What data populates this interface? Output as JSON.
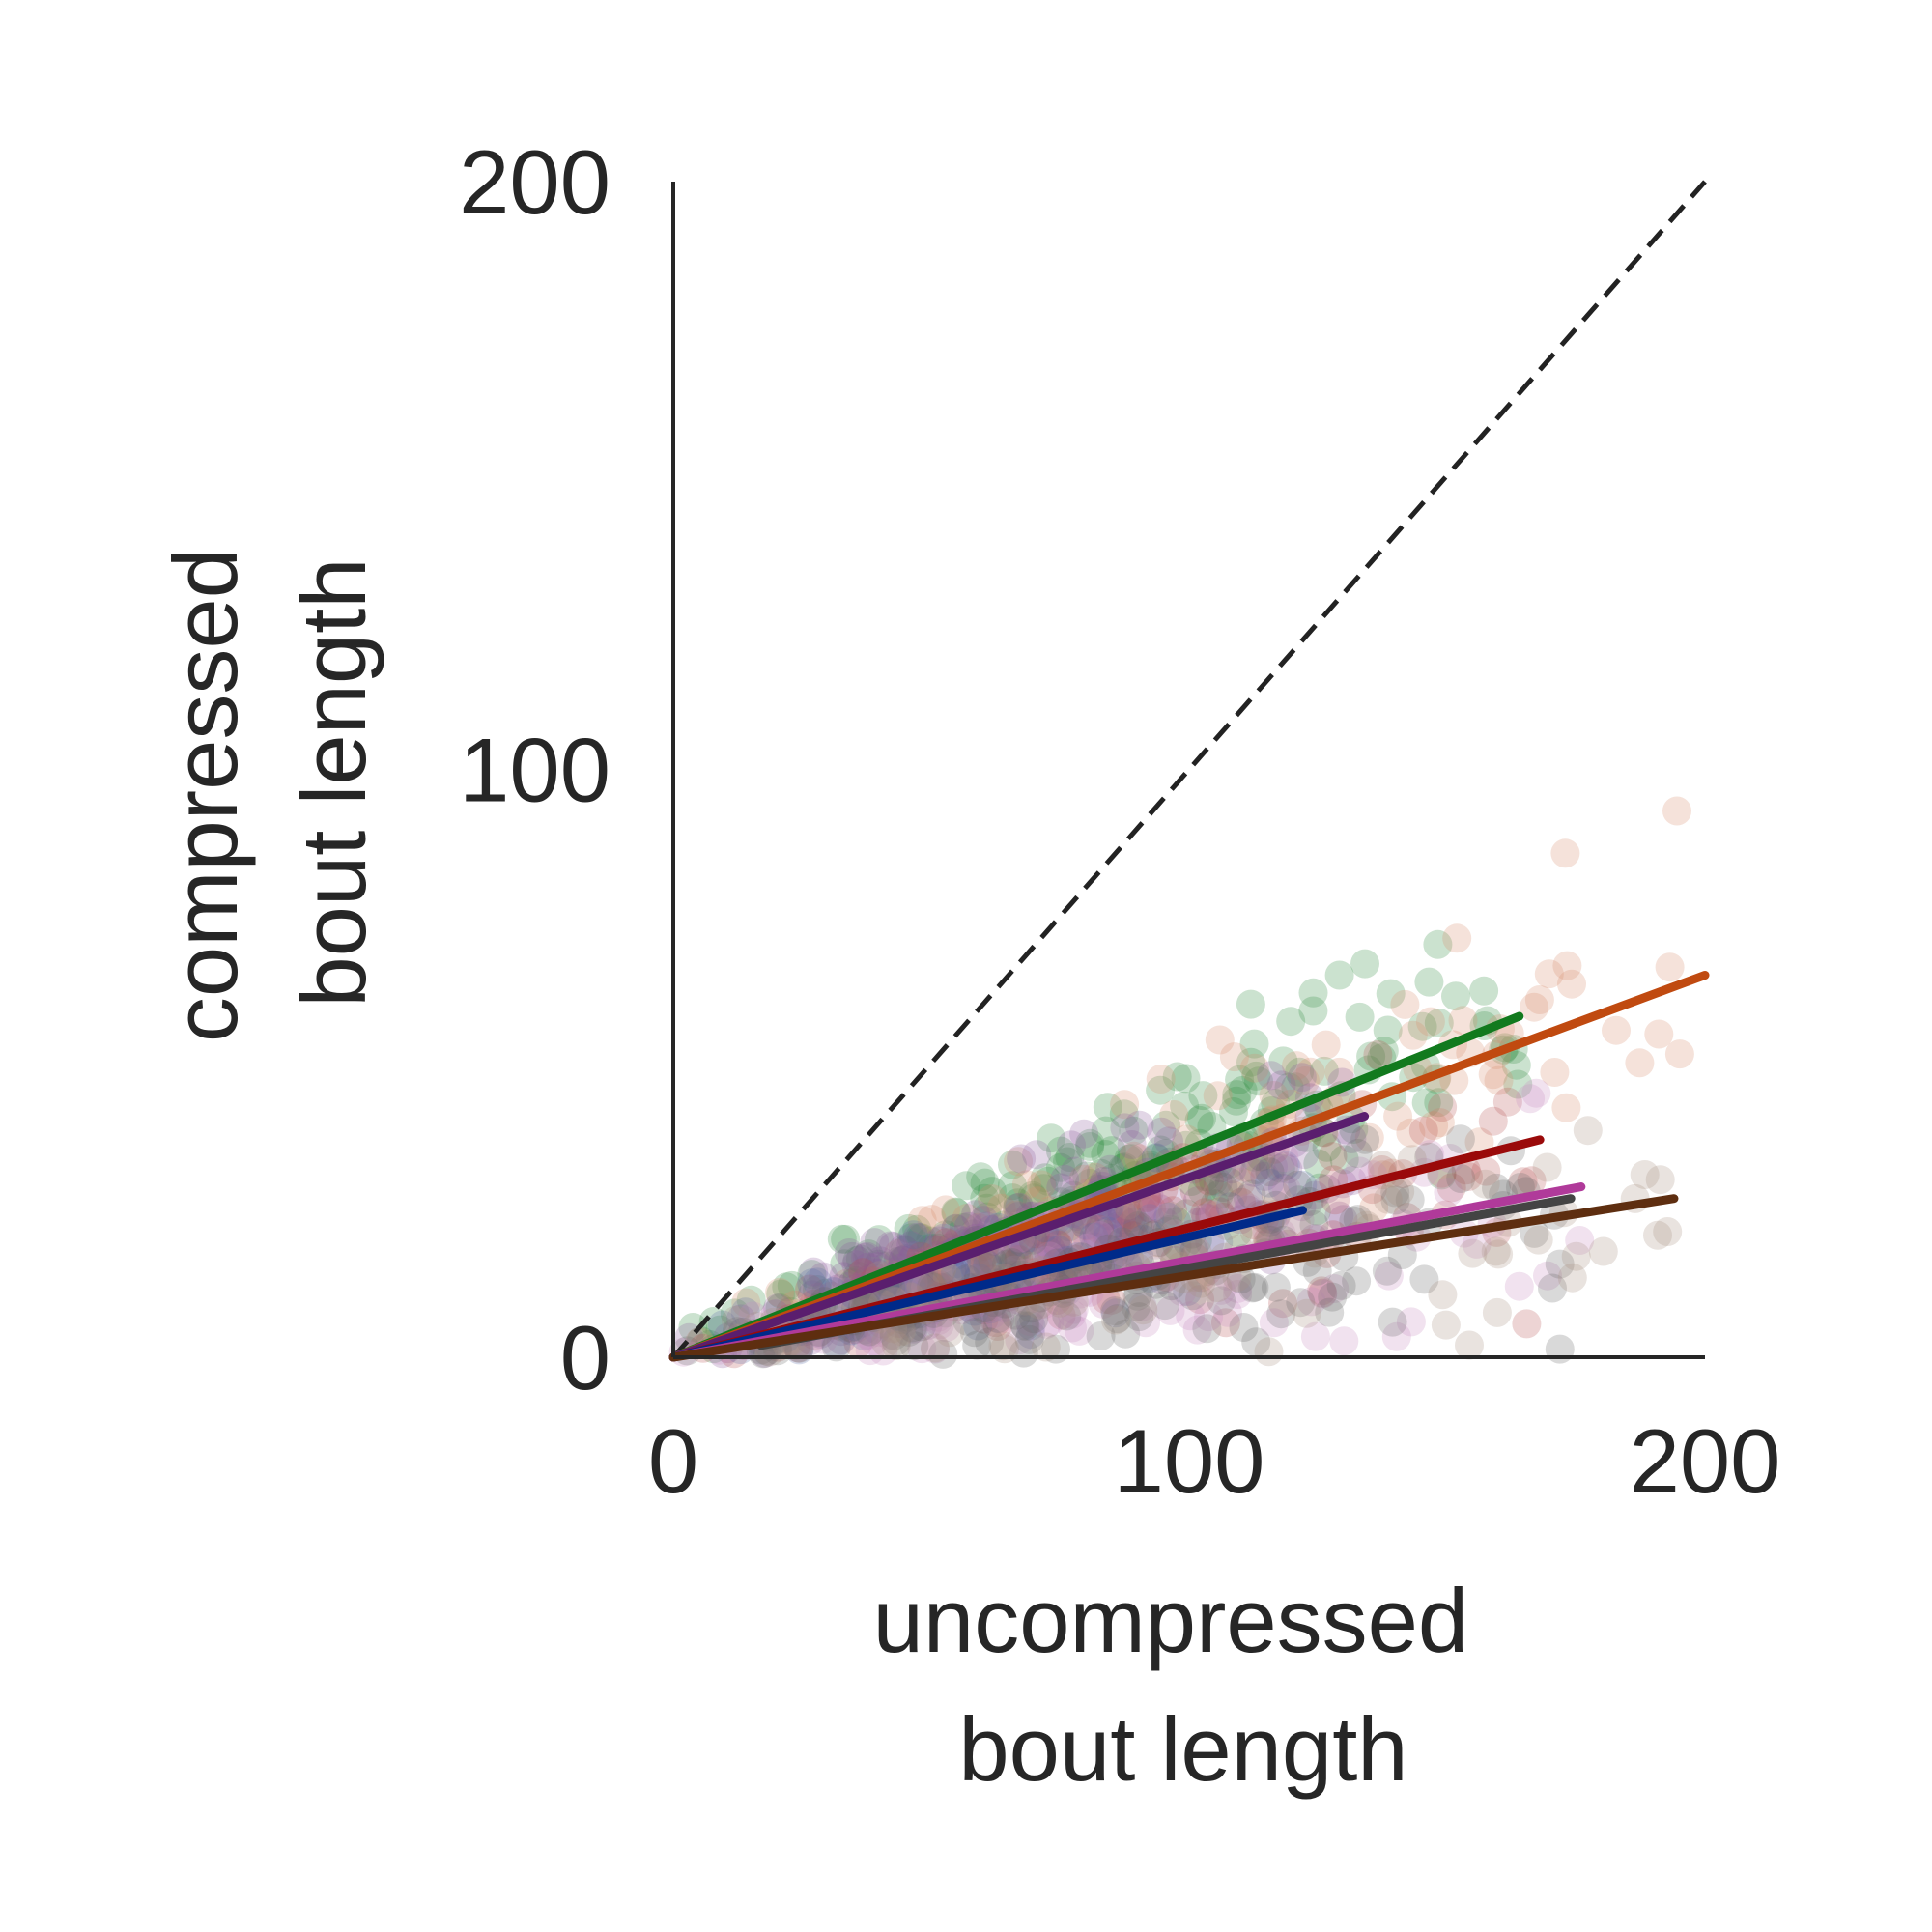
{
  "chart_data": {
    "type": "scatter",
    "xlabel_lines": [
      "uncompressed",
      "bout length"
    ],
    "ylabel_lines": [
      "compressed",
      "bout length"
    ],
    "xlim": [
      0,
      200
    ],
    "ylim": [
      0,
      200
    ],
    "xticks": [
      "0",
      "100",
      "200"
    ],
    "yticks": [
      "0",
      "100",
      "200"
    ],
    "grid": false,
    "legend": "none",
    "reference_line": {
      "style": "dashed",
      "color": "#222222",
      "x": [
        0,
        200
      ],
      "y": [
        0,
        200
      ]
    },
    "series": [
      {
        "color": "#127a1e",
        "point_color": "#2e8b3e",
        "fit": {
          "x": [
            0,
            164
          ],
          "y": [
            0,
            58
          ]
        }
      },
      {
        "color": "#c04a10",
        "point_color": "#d98a6a",
        "fit": {
          "x": [
            0,
            200
          ],
          "y": [
            0,
            65
          ]
        }
      },
      {
        "color": "#5a1e6e",
        "point_color": "#8a5a9a",
        "fit": {
          "x": [
            0,
            134
          ],
          "y": [
            0,
            41
          ]
        }
      },
      {
        "color": "#9a0a0a",
        "point_color": "#b85555",
        "fit": {
          "x": [
            0,
            168
          ],
          "y": [
            0,
            37
          ]
        }
      },
      {
        "color": "#002a8a",
        "point_color": "#5a6aa8",
        "fit": {
          "x": [
            0,
            122
          ],
          "y": [
            0,
            25
          ]
        }
      },
      {
        "color": "#b03a9a",
        "point_color": "#c98ac0",
        "fit": {
          "x": [
            0,
            176
          ],
          "y": [
            0,
            29
          ]
        }
      },
      {
        "color": "#444444",
        "point_color": "#666666",
        "fit": {
          "x": [
            17,
            174
          ],
          "y": [
            2,
            27
          ]
        }
      },
      {
        "color": "#5e2e10",
        "point_color": "#a89080",
        "fit": {
          "x": [
            0,
            194
          ],
          "y": [
            0,
            27
          ]
        }
      }
    ]
  }
}
